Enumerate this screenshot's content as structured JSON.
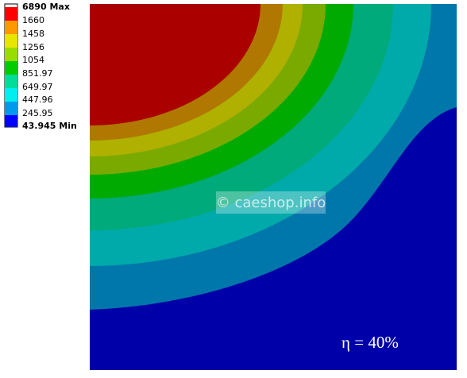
{
  "legend": {
    "labels": [
      "6890 Max",
      "1660",
      "1458",
      "1256",
      "1054",
      "851.97",
      "649.97",
      "447.96",
      "245.95",
      "43.945 Min"
    ]
  },
  "watermark": "© caeshop.info",
  "annotation": "η = 40%"
}
